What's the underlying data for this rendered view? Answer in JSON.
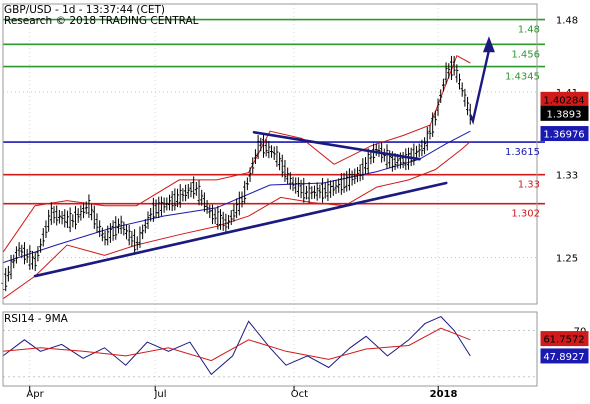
{
  "header": {
    "line1": "GBP/USD - 1d - 13:37:44 (CET)",
    "line2": "Research © 2018 TRADING CENTRAL"
  },
  "chart_data": [
    {
      "type": "line",
      "title": "GBP/USD - 1d - 13:37:44 (CET)",
      "subtitle": "Research © 2018 TRADING CENTRAL",
      "ylim": [
        1.205,
        1.495
      ],
      "y_ticks": [
        1.25,
        1.33,
        1.41,
        1.48
      ],
      "x_tick_labels": [
        "Apr",
        "Jul",
        "Oct",
        "2018"
      ],
      "price_labels": {
        "last": "1.3893",
        "marker_red": "1.40284",
        "marker_blue": "1.36976"
      },
      "horizontal_levels": [
        {
          "value": 1.48,
          "label": "1.48",
          "color": "#2e9a2e",
          "kind": "resistance"
        },
        {
          "value": 1.456,
          "label": "1.456",
          "color": "#2e9a2e",
          "kind": "resistance"
        },
        {
          "value": 1.4345,
          "label": "1.4345",
          "color": "#2e9a2e",
          "kind": "resistance"
        },
        {
          "value": 1.3615,
          "label": "1.3615",
          "color": "#1a1ab0",
          "kind": "pivot"
        },
        {
          "value": 1.33,
          "label": "1.33",
          "color": "#d11a1a",
          "kind": "support"
        },
        {
          "value": 1.302,
          "label": "1.302",
          "color": "#d11a1a",
          "kind": "support"
        }
      ],
      "trendlines": [
        {
          "from": [
            0.06,
            1.232
          ],
          "to": [
            0.83,
            1.322
          ],
          "color": "#1a1a80"
        },
        {
          "from": [
            0.47,
            1.371
          ],
          "to": [
            0.78,
            1.345
          ],
          "color": "#1a1a80"
        }
      ],
      "projection_arrow": {
        "from": [
          0.88,
          1.382
        ],
        "to": [
          0.91,
          1.46
        ],
        "color": "#1a1a80"
      },
      "price_series": [
        {
          "x": 0.0,
          "y": 1.222
        },
        {
          "x": 0.03,
          "y": 1.258
        },
        {
          "x": 0.06,
          "y": 1.245
        },
        {
          "x": 0.09,
          "y": 1.292
        },
        {
          "x": 0.13,
          "y": 1.285
        },
        {
          "x": 0.16,
          "y": 1.3
        },
        {
          "x": 0.19,
          "y": 1.268
        },
        {
          "x": 0.22,
          "y": 1.282
        },
        {
          "x": 0.25,
          "y": 1.262
        },
        {
          "x": 0.28,
          "y": 1.295
        },
        {
          "x": 0.32,
          "y": 1.305
        },
        {
          "x": 0.36,
          "y": 1.318
        },
        {
          "x": 0.39,
          "y": 1.292
        },
        {
          "x": 0.42,
          "y": 1.282
        },
        {
          "x": 0.45,
          "y": 1.308
        },
        {
          "x": 0.48,
          "y": 1.36
        },
        {
          "x": 0.51,
          "y": 1.35
        },
        {
          "x": 0.54,
          "y": 1.322
        },
        {
          "x": 0.57,
          "y": 1.312
        },
        {
          "x": 0.61,
          "y": 1.315
        },
        {
          "x": 0.64,
          "y": 1.322
        },
        {
          "x": 0.67,
          "y": 1.332
        },
        {
          "x": 0.7,
          "y": 1.355
        },
        {
          "x": 0.73,
          "y": 1.342
        },
        {
          "x": 0.76,
          "y": 1.345
        },
        {
          "x": 0.79,
          "y": 1.358
        },
        {
          "x": 0.81,
          "y": 1.385
        },
        {
          "x": 0.83,
          "y": 1.428
        },
        {
          "x": 0.845,
          "y": 1.435
        },
        {
          "x": 0.86,
          "y": 1.412
        },
        {
          "x": 0.875,
          "y": 1.388
        }
      ],
      "ma_series": [
        {
          "x": 0.0,
          "y": 1.245
        },
        {
          "x": 0.1,
          "y": 1.262
        },
        {
          "x": 0.2,
          "y": 1.278
        },
        {
          "x": 0.3,
          "y": 1.29
        },
        {
          "x": 0.4,
          "y": 1.298
        },
        {
          "x": 0.5,
          "y": 1.32
        },
        {
          "x": 0.6,
          "y": 1.322
        },
        {
          "x": 0.7,
          "y": 1.333
        },
        {
          "x": 0.78,
          "y": 1.345
        },
        {
          "x": 0.83,
          "y": 1.36
        },
        {
          "x": 0.875,
          "y": 1.372
        }
      ],
      "bollinger_upper": [
        {
          "x": 0.0,
          "y": 1.255
        },
        {
          "x": 0.06,
          "y": 1.3
        },
        {
          "x": 0.12,
          "y": 1.305
        },
        {
          "x": 0.19,
          "y": 1.3
        },
        {
          "x": 0.25,
          "y": 1.3
        },
        {
          "x": 0.33,
          "y": 1.325
        },
        {
          "x": 0.4,
          "y": 1.325
        },
        {
          "x": 0.46,
          "y": 1.332
        },
        {
          "x": 0.5,
          "y": 1.372
        },
        {
          "x": 0.56,
          "y": 1.365
        },
        {
          "x": 0.62,
          "y": 1.34
        },
        {
          "x": 0.69,
          "y": 1.358
        },
        {
          "x": 0.75,
          "y": 1.368
        },
        {
          "x": 0.8,
          "y": 1.378
        },
        {
          "x": 0.85,
          "y": 1.445
        },
        {
          "x": 0.875,
          "y": 1.438
        }
      ],
      "bollinger_lower": [
        {
          "x": 0.0,
          "y": 1.21
        },
        {
          "x": 0.06,
          "y": 1.232
        },
        {
          "x": 0.12,
          "y": 1.262
        },
        {
          "x": 0.19,
          "y": 1.252
        },
        {
          "x": 0.25,
          "y": 1.262
        },
        {
          "x": 0.33,
          "y": 1.272
        },
        {
          "x": 0.4,
          "y": 1.28
        },
        {
          "x": 0.46,
          "y": 1.29
        },
        {
          "x": 0.52,
          "y": 1.308
        },
        {
          "x": 0.58,
          "y": 1.303
        },
        {
          "x": 0.64,
          "y": 1.3
        },
        {
          "x": 0.7,
          "y": 1.318
        },
        {
          "x": 0.76,
          "y": 1.325
        },
        {
          "x": 0.81,
          "y": 1.335
        },
        {
          "x": 0.86,
          "y": 1.355
        },
        {
          "x": 0.875,
          "y": 1.362
        }
      ]
    },
    {
      "type": "line",
      "title": "RSI14 - 9MA",
      "ylim": [
        22,
        86
      ],
      "y_ticks": [
        70
      ],
      "labels": {
        "rsi": "47.8927",
        "ma": "61.7572"
      },
      "series": [
        {
          "name": "RSI14",
          "color": "#1a1a80",
          "points": [
            {
              "x": 0.0,
              "y": 48
            },
            {
              "x": 0.04,
              "y": 62
            },
            {
              "x": 0.07,
              "y": 52
            },
            {
              "x": 0.11,
              "y": 58
            },
            {
              "x": 0.15,
              "y": 46
            },
            {
              "x": 0.19,
              "y": 55
            },
            {
              "x": 0.23,
              "y": 40
            },
            {
              "x": 0.27,
              "y": 60
            },
            {
              "x": 0.31,
              "y": 52
            },
            {
              "x": 0.35,
              "y": 60
            },
            {
              "x": 0.39,
              "y": 32
            },
            {
              "x": 0.43,
              "y": 48
            },
            {
              "x": 0.46,
              "y": 78
            },
            {
              "x": 0.5,
              "y": 55
            },
            {
              "x": 0.53,
              "y": 40
            },
            {
              "x": 0.57,
              "y": 48
            },
            {
              "x": 0.61,
              "y": 38
            },
            {
              "x": 0.65,
              "y": 55
            },
            {
              "x": 0.68,
              "y": 65
            },
            {
              "x": 0.72,
              "y": 48
            },
            {
              "x": 0.76,
              "y": 62
            },
            {
              "x": 0.79,
              "y": 76
            },
            {
              "x": 0.82,
              "y": 82
            },
            {
              "x": 0.845,
              "y": 70
            },
            {
              "x": 0.875,
              "y": 48
            }
          ]
        },
        {
          "name": "9MA",
          "color": "#d11a1a",
          "points": [
            {
              "x": 0.0,
              "y": 52
            },
            {
              "x": 0.07,
              "y": 55
            },
            {
              "x": 0.15,
              "y": 52
            },
            {
              "x": 0.23,
              "y": 48
            },
            {
              "x": 0.31,
              "y": 55
            },
            {
              "x": 0.39,
              "y": 44
            },
            {
              "x": 0.46,
              "y": 62
            },
            {
              "x": 0.53,
              "y": 52
            },
            {
              "x": 0.61,
              "y": 45
            },
            {
              "x": 0.68,
              "y": 54
            },
            {
              "x": 0.76,
              "y": 57
            },
            {
              "x": 0.82,
              "y": 72
            },
            {
              "x": 0.875,
              "y": 62
            }
          ]
        }
      ]
    }
  ]
}
